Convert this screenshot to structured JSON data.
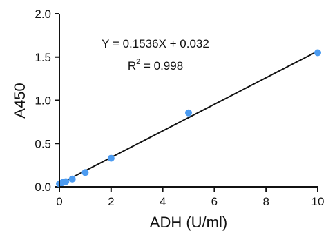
{
  "chart_data": {
    "type": "scatter",
    "title": "",
    "xlabel": "ADH (U/ml)",
    "ylabel": "A450",
    "xlim": [
      0,
      10
    ],
    "ylim": [
      0,
      2.0
    ],
    "x_ticks": [
      "0",
      "2",
      "4",
      "6",
      "8",
      "10"
    ],
    "y_ticks": [
      "0.0",
      "0.5",
      "1.0",
      "1.5",
      "2.0"
    ],
    "grid": false,
    "legend": "none",
    "series": [
      {
        "x": [
          0,
          0.0625,
          0.125,
          0.25,
          0.5,
          1,
          2,
          5,
          10
        ],
        "y": [
          0.035,
          0.04,
          0.05,
          0.06,
          0.09,
          0.165,
          0.33,
          0.855,
          1.55
        ],
        "color": "#4c9bf0"
      }
    ],
    "fit": {
      "slope": 0.1536,
      "intercept": 0.032,
      "color": "#111111"
    },
    "annotations": {
      "equation": "Y = 0.1536X + 0.032",
      "r2_label": "R",
      "r2_superscript": "2",
      "r2_value": " = 0.998"
    }
  }
}
